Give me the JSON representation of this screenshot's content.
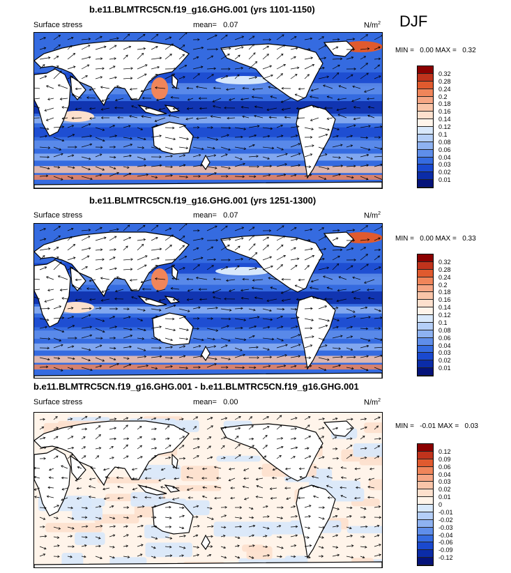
{
  "season": "DJF",
  "panels": [
    {
      "title": "b.e11.BLMTRC5CN.f19_g16.GHG.001 (yrs 1101-1150)",
      "left": "Surface stress",
      "mean_label": "mean=",
      "mean_value": "0.07",
      "units": "N/m",
      "units_sup": "2",
      "min_label": "MIN =",
      "min_value": "0.00",
      "max_label": "MAX =",
      "max_value": "0.32",
      "levels": [
        "0.32",
        "0.28",
        "0.24",
        "0.2",
        "0.18",
        "0.16",
        "0.14",
        "0.12",
        "0.1",
        "0.08",
        "0.06",
        "0.04",
        "0.03",
        "0.02",
        "0.01"
      ],
      "colors": [
        "#8b0000",
        "#c0331c",
        "#e05a2e",
        "#f0855a",
        "#f6a684",
        "#f9c4a8",
        "#fde0cd",
        "#fff4ea",
        "#d8e8fb",
        "#b4cef7",
        "#8eb2f1",
        "#5f8eea",
        "#356be0",
        "#1a49cf",
        "#0b2ca8",
        "#05137a"
      ]
    },
    {
      "title": "b.e11.BLMTRC5CN.f19_g16.GHG.001 (yrs 1251-1300)",
      "left": "Surface stress",
      "mean_label": "mean=",
      "mean_value": "0.07",
      "units": "N/m",
      "units_sup": "2",
      "min_label": "MIN =",
      "min_value": "0.00",
      "max_label": "MAX =",
      "max_value": "0.33",
      "levels": [
        "0.32",
        "0.28",
        "0.24",
        "0.2",
        "0.18",
        "0.16",
        "0.14",
        "0.12",
        "0.1",
        "0.08",
        "0.06",
        "0.04",
        "0.03",
        "0.02",
        "0.01"
      ],
      "colors": [
        "#8b0000",
        "#c0331c",
        "#e05a2e",
        "#f0855a",
        "#f6a684",
        "#f9c4a8",
        "#fde0cd",
        "#fff4ea",
        "#d8e8fb",
        "#b4cef7",
        "#8eb2f1",
        "#5f8eea",
        "#356be0",
        "#1a49cf",
        "#0b2ca8",
        "#05137a"
      ]
    },
    {
      "title": "b.e11.BLMTRC5CN.f19_g16.GHG.001 - b.e11.BLMTRC5CN.f19_g16.GHG.001",
      "left": "Surface stress",
      "mean_label": "mean=",
      "mean_value": "0.00",
      "units": "N/m",
      "units_sup": "2",
      "min_label": "MIN =",
      "min_value": "-0.01",
      "max_label": "MAX =",
      "max_value": "0.03",
      "levels": [
        "0.12",
        "0.09",
        "0.06",
        "0.04",
        "0.03",
        "0.02",
        "0.01",
        "0",
        "-0.01",
        "-0.02",
        "-0.03",
        "-0.04",
        "-0.06",
        "-0.09",
        "-0.12"
      ],
      "colors": [
        "#8b0000",
        "#c0331c",
        "#e05a2e",
        "#f0855a",
        "#f6a684",
        "#f9c4a8",
        "#fde0cd",
        "#fff4ea",
        "#d8e8fb",
        "#b4cef7",
        "#8eb2f1",
        "#5f8eea",
        "#356be0",
        "#1a49cf",
        "#0b2ca8",
        "#05137a"
      ]
    }
  ]
}
